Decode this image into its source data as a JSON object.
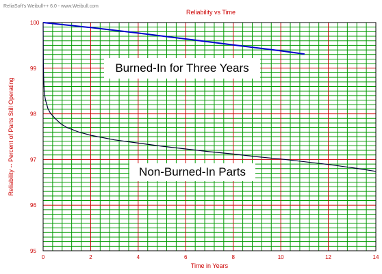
{
  "watermark": "ReliaSoft's Weibull++ 6.0 - www.Weibull.com",
  "chart_data": {
    "type": "line",
    "title": "Reliability vs Time",
    "xlabel": "Time in Years",
    "ylabel": "Reliability -- Percent of Parts Still Operating",
    "xlim": [
      0,
      14
    ],
    "ylim": [
      95,
      100
    ],
    "x_major_ticks": [
      0,
      2,
      4,
      6,
      8,
      10,
      12,
      14
    ],
    "y_major_ticks": [
      95,
      96,
      97,
      98,
      99,
      100
    ],
    "grid": true,
    "annotations": [
      "Burned-In for Three Years",
      "Non-Burned-In Parts"
    ],
    "series": [
      {
        "color": "#0000cc",
        "x": [
          0,
          2,
          4,
          6,
          8,
          10,
          11
        ],
        "y": [
          100,
          99.89,
          99.77,
          99.64,
          99.51,
          99.38,
          99.31
        ]
      },
      {
        "color": "#000033",
        "x": [
          0.01,
          0.02,
          0.05,
          0.1,
          0.2,
          0.3,
          0.5,
          0.75,
          1,
          1.5,
          2,
          3,
          4,
          5,
          6,
          7,
          8,
          9,
          10,
          11,
          12,
          13,
          14
        ],
        "y": [
          99.15,
          98.8,
          98.45,
          98.3,
          98.12,
          98.02,
          97.9,
          97.78,
          97.7,
          97.6,
          97.53,
          97.43,
          97.36,
          97.29,
          97.23,
          97.17,
          97.12,
          97.06,
          97.01,
          96.95,
          96.89,
          96.82,
          96.74
        ]
      }
    ]
  }
}
